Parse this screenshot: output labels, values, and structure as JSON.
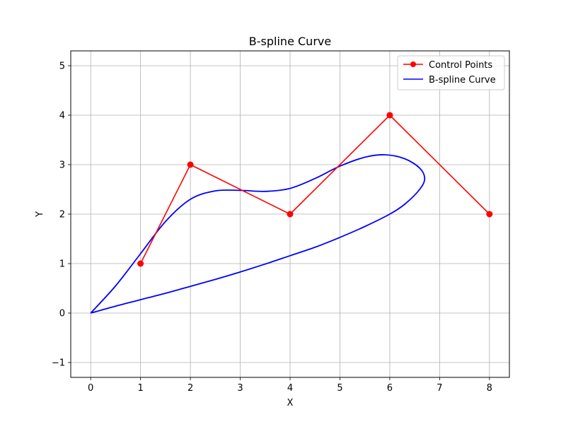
{
  "chart_data": {
    "type": "line",
    "title": "B-spline Curve",
    "xlabel": "X",
    "ylabel": "Y",
    "xlim": [
      -0.4,
      8.4
    ],
    "ylim": [
      -1.3,
      5.3
    ],
    "xticks": [
      0,
      1,
      2,
      3,
      4,
      5,
      6,
      7,
      8
    ],
    "yticks": [
      -1,
      0,
      1,
      2,
      3,
      4,
      5
    ],
    "xtick_labels": [
      "0",
      "1",
      "2",
      "3",
      "4",
      "5",
      "6",
      "7",
      "8"
    ],
    "ytick_labels": [
      "−1",
      "0",
      "1",
      "2",
      "3",
      "4",
      "5"
    ],
    "grid": true,
    "legend_position": "top-right",
    "series": [
      {
        "name": "Control Points",
        "style": "line-with-markers",
        "color": "#ff0000",
        "x": [
          1,
          2,
          4,
          6,
          8
        ],
        "y": [
          1,
          3,
          2,
          4,
          2
        ]
      },
      {
        "name": "B-spline Curve",
        "style": "line",
        "color": "#0000ff",
        "x": [
          0.0,
          0.5,
          1.0,
          1.5,
          2.0,
          2.5,
          3.0,
          3.5,
          4.0,
          4.5,
          5.0,
          5.5,
          5.9,
          6.3,
          6.6,
          6.7,
          6.6,
          6.3,
          6.0,
          5.5,
          5.0,
          4.5,
          4.0,
          3.5,
          3.0,
          2.5,
          2.0,
          1.5,
          1.0,
          0.5,
          0.0
        ],
        "y": [
          0.0,
          0.55,
          1.2,
          1.85,
          2.3,
          2.47,
          2.48,
          2.46,
          2.52,
          2.72,
          2.97,
          3.15,
          3.2,
          3.12,
          2.93,
          2.72,
          2.5,
          2.2,
          2.0,
          1.75,
          1.53,
          1.33,
          1.16,
          0.99,
          0.83,
          0.68,
          0.54,
          0.4,
          0.27,
          0.14,
          0.0
        ]
      }
    ]
  }
}
